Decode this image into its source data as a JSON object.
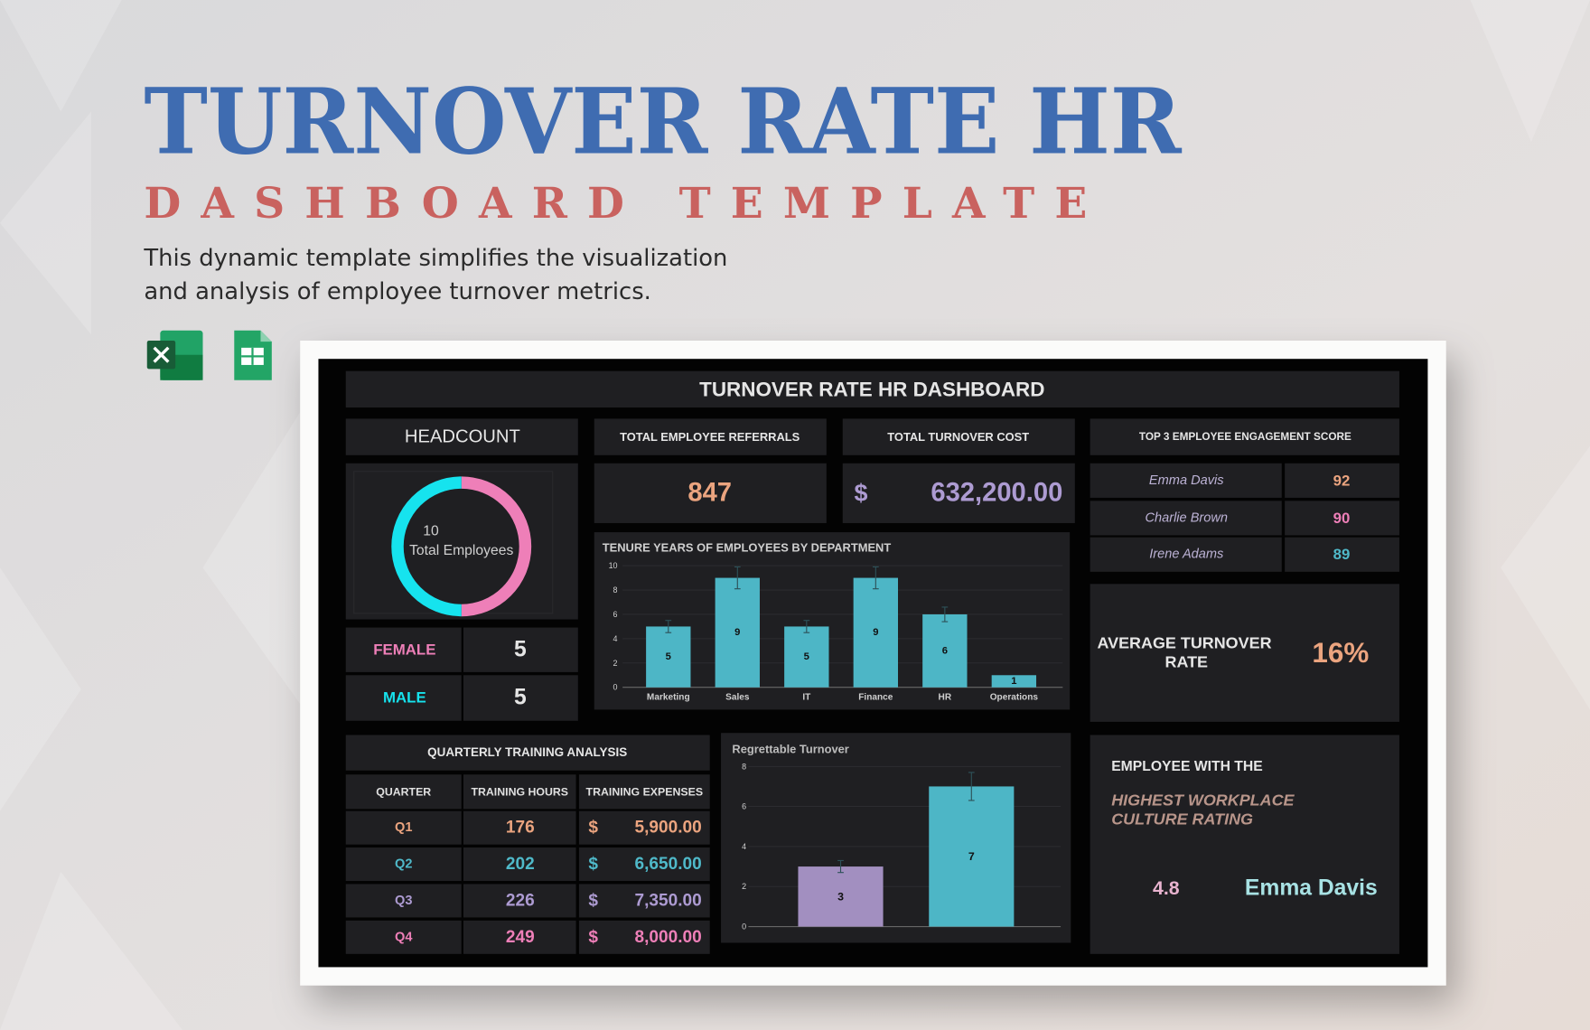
{
  "header": {
    "title": "TURNOVER RATE HR",
    "subtitle": "DASHBOARD TEMPLATE",
    "description": [
      "This dynamic template simplifies the visualization",
      "and analysis of employee turnover metrics."
    ]
  },
  "dashboard": {
    "title": "TURNOVER RATE HR DASHBOARD",
    "referrals": {
      "title": "TOTAL EMPLOYEE REFERRALS",
      "value": 847
    },
    "turnover_cost": {
      "title": "TOTAL TURNOVER COST",
      "currency": "$",
      "amount": "632,200.00"
    },
    "engagement": {
      "title": "TOP 3 EMPLOYEE ENGAGEMENT SCORE",
      "rows": [
        {
          "name": "Emma Davis",
          "score": 92
        },
        {
          "name": "Charlie Brown",
          "score": 90
        },
        {
          "name": "Irene Adams",
          "score": 89
        }
      ],
      "score_colors": [
        "#eba47f",
        "#ee7fb8",
        "#4fb9c9"
      ]
    },
    "average_turnover": {
      "label": [
        "AVERAGE TURNOVER",
        "RATE"
      ],
      "value": "16%"
    },
    "training": {
      "title": "QUARTERLY TRAINING ANALYSIS",
      "headers": [
        "QUARTER",
        "TRAINING HOURS",
        "TRAINING EXPENSES"
      ],
      "rows": [
        [
          "Q1",
          176,
          "$",
          "5,900.00"
        ],
        [
          "Q2",
          202,
          "$",
          "6,650.00"
        ],
        [
          "Q3",
          226,
          "$",
          "7,350.00"
        ],
        [
          "Q4",
          249,
          "$",
          "8,000.00"
        ]
      ],
      "row_colors": [
        "#eba47f",
        "#4fb9c9",
        "#ad9bd2",
        "#ee7fb8"
      ]
    },
    "top_culture": {
      "heading": "EMPLOYEE WITH THE",
      "highlight": [
        "HIGHEST WORKPLACE",
        "CULTURE RATING"
      ],
      "rating": 4.8,
      "name": "Emma Davis"
    }
  },
  "chart_data": [
    {
      "type": "pie",
      "title": "HEADCOUNT",
      "center_value": 10,
      "center_label": "Total Employees",
      "categories": [
        "FEMALE",
        "MALE"
      ],
      "values": [
        5,
        5
      ],
      "colors": [
        "#ee7fb8",
        "#16e3ee"
      ]
    },
    {
      "type": "bar",
      "title": "TENURE YEARS OF EMPLOYEES BY DEPARTMENT",
      "categories": [
        "Marketing",
        "Sales",
        "IT",
        "Finance",
        "HR",
        "Operations"
      ],
      "values": [
        5,
        9,
        5,
        9,
        6,
        1
      ],
      "errors": [
        0.5,
        0.9,
        0.5,
        0.9,
        0.6,
        0
      ],
      "color": "#4db6c6",
      "ylim": [
        0,
        10
      ],
      "yticks": [
        0,
        2,
        4,
        6,
        8,
        10
      ],
      "grid": true
    },
    {
      "type": "bar",
      "title": "Regrettable Turnover",
      "categories": [
        null,
        null
      ],
      "values": [
        3,
        7
      ],
      "errors": [
        0.3,
        0.7
      ],
      "colors": [
        "#a28fc0",
        "#4db6c6"
      ],
      "ylim": [
        0,
        8
      ],
      "yticks": [
        0,
        2,
        4,
        6,
        8
      ],
      "grid": true
    }
  ]
}
